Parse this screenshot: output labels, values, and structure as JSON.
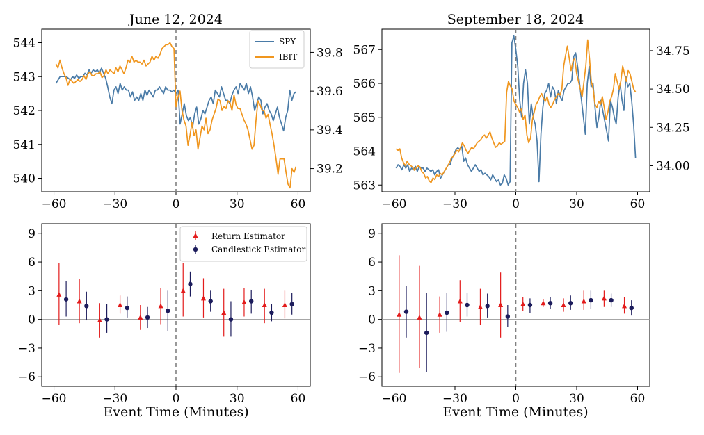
{
  "figure": {
    "titles": [
      "June 12, 2024",
      "September 18, 2024"
    ],
    "xlabel": "Event Time (Minutes)"
  },
  "colors": {
    "spy": "#4a7ba7",
    "ibit": "#f0961e",
    "return_estimator": "#e31b1b",
    "candlestick_estimator": "#1c1c5c",
    "event_line": "#808080",
    "zero_line": "#9a9a9a"
  },
  "chart_data": [
    {
      "type": "line",
      "title": "June 12, 2024",
      "x_ticks": [
        -60,
        -30,
        0,
        30,
        60
      ],
      "xlim": [
        -66,
        66
      ],
      "ylim_left": [
        539.6,
        544.4
      ],
      "yticks_left": [
        540,
        541,
        542,
        543,
        544
      ],
      "ylim_right": [
        39.08,
        39.92
      ],
      "yticks_right": [
        "39.2",
        "39.4",
        "39.6",
        "39.8"
      ],
      "event_line_x": 0,
      "legend": [
        "SPY",
        "IBIT"
      ],
      "legend_position": "top-right",
      "series": [
        {
          "name": "SPY",
          "axis": "left",
          "x_start": -59,
          "values": [
            542.8,
            542.9,
            543.0,
            543.0,
            543.0,
            543.0,
            542.95,
            542.9,
            543.0,
            542.95,
            543.05,
            542.95,
            543.0,
            543.0,
            543.1,
            543.05,
            543.2,
            543.1,
            543.2,
            543.15,
            543.2,
            543.1,
            543.25,
            543.1,
            542.95,
            542.7,
            542.4,
            542.2,
            542.6,
            542.7,
            542.5,
            542.8,
            542.6,
            542.7,
            542.6,
            542.6,
            542.4,
            542.55,
            542.3,
            542.4,
            542.3,
            542.5,
            542.3,
            542.6,
            542.45,
            542.6,
            542.5,
            542.4,
            542.6,
            542.6,
            542.7,
            542.6,
            542.5,
            542.7,
            542.6,
            542.6,
            542.55,
            542.6,
            542.5,
            542.6,
            541.6,
            541.9,
            542.2,
            541.85,
            541.7,
            541.8,
            541.5,
            541.9,
            542.1,
            541.6,
            541.75,
            542.0,
            541.9,
            542.1,
            542.3,
            542.4,
            542.2,
            542.6,
            542.5,
            542.4,
            542.7,
            542.5,
            542.3,
            542.3,
            542.2,
            542.45,
            542.6,
            542.7,
            542.5,
            542.8,
            542.7,
            542.6,
            542.8,
            542.5,
            542.7,
            542.4,
            542.0,
            542.2,
            542.4,
            542.3,
            541.9,
            542.1,
            542.2,
            542.0,
            541.9,
            541.7,
            541.9,
            542.1,
            541.8,
            541.6,
            541.4,
            541.8,
            542.0,
            542.6,
            542.3,
            542.5,
            542.55
          ]
        },
        {
          "name": "IBIT",
          "axis": "right",
          "x_start": -59,
          "values": [
            39.74,
            39.72,
            39.76,
            39.72,
            39.69,
            39.67,
            39.63,
            39.66,
            39.65,
            39.64,
            39.65,
            39.66,
            39.65,
            39.66,
            39.68,
            39.66,
            39.69,
            39.7,
            39.68,
            39.68,
            39.69,
            39.69,
            39.7,
            39.67,
            39.68,
            39.71,
            39.69,
            39.71,
            39.7,
            39.69,
            39.72,
            39.7,
            39.73,
            39.71,
            39.69,
            39.72,
            39.76,
            39.75,
            39.78,
            39.75,
            39.76,
            39.75,
            39.75,
            39.74,
            39.76,
            39.73,
            39.74,
            39.75,
            39.78,
            39.76,
            39.78,
            39.77,
            39.79,
            39.82,
            39.83,
            39.84,
            39.84,
            39.85,
            39.83,
            39.82,
            39.52,
            39.57,
            39.6,
            39.5,
            39.45,
            39.42,
            39.32,
            39.37,
            39.44,
            39.37,
            39.4,
            39.3,
            39.36,
            39.42,
            39.4,
            39.46,
            39.38,
            39.4,
            39.45,
            39.48,
            39.51,
            39.56,
            39.55,
            39.5,
            39.52,
            39.51,
            39.55,
            39.54,
            39.5,
            39.58,
            39.53,
            39.51,
            39.51,
            39.48,
            39.45,
            39.43,
            39.4,
            39.35,
            39.3,
            39.32,
            39.45,
            39.55,
            39.53,
            39.5,
            39.5,
            39.46,
            39.48,
            39.43,
            39.38,
            39.32,
            39.25,
            39.17,
            39.25,
            39.25,
            39.25,
            39.18,
            39.12,
            39.1,
            39.2,
            39.18,
            39.21
          ]
        }
      ]
    },
    {
      "type": "line",
      "title": "September 18, 2024",
      "x_ticks": [
        -60,
        -30,
        0,
        30,
        60
      ],
      "xlim": [
        -66,
        66
      ],
      "ylim_left": [
        562.8,
        567.6
      ],
      "yticks_left": [
        563,
        564,
        565,
        566,
        567
      ],
      "ylim_right": [
        33.83,
        34.89
      ],
      "yticks_right": [
        "34.00",
        "34.25",
        "34.50",
        "34.75"
      ],
      "event_line_x": 0,
      "series": [
        {
          "name": "SPY",
          "axis": "left",
          "x_start": -59,
          "values": [
            563.5,
            563.6,
            563.55,
            563.45,
            563.6,
            563.5,
            563.6,
            563.4,
            563.5,
            563.45,
            563.55,
            563.4,
            563.55,
            563.5,
            563.5,
            563.4,
            563.5,
            563.45,
            563.4,
            563.45,
            563.3,
            563.4,
            563.45,
            563.2,
            563.3,
            563.4,
            563.5,
            563.6,
            563.6,
            563.8,
            563.9,
            564.05,
            564.1,
            564.05,
            564.15,
            563.7,
            563.8,
            563.6,
            563.5,
            563.4,
            563.5,
            563.6,
            563.5,
            563.4,
            563.45,
            563.3,
            563.35,
            563.3,
            563.25,
            563.15,
            563.3,
            563.2,
            563.1,
            563.15,
            563.0,
            563.05,
            563.3,
            563.2,
            563.0,
            563.1,
            567.2,
            567.4,
            567.0,
            566.5,
            565.5,
            565.0,
            566.0,
            566.4,
            566.0,
            564.8,
            565.4,
            565.0,
            564.8,
            564.3,
            563.1,
            564.5,
            565.3,
            565.7,
            565.8,
            566.0,
            565.6,
            565.9,
            565.8,
            565.4,
            565.8,
            565.6,
            565.5,
            565.8,
            565.9,
            566.0,
            566.0,
            566.1,
            566.8,
            566.9,
            566.5,
            566.0,
            565.5,
            565.0,
            564.5,
            566.0,
            566.5,
            565.9,
            566.0,
            565.3,
            564.7,
            565.0,
            565.5,
            565.2,
            564.9,
            564.6,
            564.3,
            565.5,
            565.3,
            565.0,
            564.8,
            565.6,
            566.0,
            565.5,
            565.2,
            566.2,
            565.9,
            566.0,
            565.5,
            564.8,
            563.8
          ]
        },
        {
          "name": "IBIT",
          "axis": "right",
          "x_start": -59,
          "values": [
            34.11,
            34.1,
            34.11,
            34.05,
            34.02,
            34.0,
            34.03,
            34.01,
            34.0,
            33.99,
            33.97,
            33.99,
            34.0,
            33.99,
            33.96,
            33.95,
            33.92,
            33.93,
            33.9,
            33.89,
            33.92,
            33.91,
            33.94,
            33.93,
            33.95,
            33.94,
            33.96,
            33.98,
            34.0,
            34.02,
            34.05,
            34.06,
            34.08,
            34.1,
            34.09,
            34.12,
            34.15,
            34.13,
            34.1,
            34.08,
            34.1,
            34.12,
            34.11,
            34.13,
            34.15,
            34.16,
            34.17,
            34.19,
            34.2,
            34.18,
            34.2,
            34.22,
            34.18,
            34.15,
            34.12,
            34.13,
            34.15,
            34.14,
            34.15,
            34.16,
            34.48,
            34.55,
            34.52,
            34.5,
            34.42,
            34.4,
            34.38,
            34.35,
            34.37,
            34.3,
            34.33,
            34.2,
            34.15,
            34.18,
            34.3,
            34.35,
            34.4,
            34.42,
            34.45,
            34.47,
            34.44,
            34.42,
            34.45,
            34.4,
            34.38,
            34.4,
            34.43,
            34.45,
            34.47,
            34.46,
            34.5,
            34.65,
            34.72,
            34.78,
            34.7,
            34.62,
            34.68,
            34.7,
            34.6,
            34.55,
            34.5,
            34.45,
            34.55,
            34.65,
            34.82,
            34.7,
            34.55,
            34.5,
            34.4,
            34.38,
            34.42,
            34.4,
            34.45,
            34.38,
            34.3,
            34.35,
            34.42,
            34.45,
            34.5,
            34.6,
            34.55,
            34.5,
            34.55,
            34.65,
            34.6,
            34.55,
            34.62,
            34.6,
            34.55,
            34.5,
            34.48
          ]
        }
      ]
    },
    {
      "type": "scatter",
      "subtype": "errorbar",
      "xlim": [
        -66,
        66
      ],
      "ylim": [
        -7,
        10
      ],
      "x_ticks": [
        -60,
        -30,
        0,
        30,
        60
      ],
      "y_ticks": [
        -6,
        -3,
        0,
        3,
        6,
        9
      ],
      "event_line_x": 0,
      "zero_line_y": 0,
      "legend": [
        "Return Estimator",
        "Candlestick Estimator"
      ],
      "legend_position": "top-right",
      "series": [
        {
          "name": "Return Estimator",
          "marker": "triangle",
          "points": [
            {
              "x": -57.5,
              "y": 2.6,
              "lo": -0.6,
              "hi": 5.9
            },
            {
              "x": -47.5,
              "y": 1.9,
              "lo": -0.4,
              "hi": 4.2
            },
            {
              "x": -37.5,
              "y": -0.1,
              "lo": -1.9,
              "hi": 1.7
            },
            {
              "x": -27.5,
              "y": 1.5,
              "lo": 0.6,
              "hi": 2.5
            },
            {
              "x": -17.5,
              "y": 0.2,
              "lo": -1.1,
              "hi": 1.5
            },
            {
              "x": -7.5,
              "y": 1.4,
              "lo": -0.5,
              "hi": 3.3
            },
            {
              "x": 3.5,
              "y": 3.0,
              "lo": 0.3,
              "hi": 5.9
            },
            {
              "x": 13.5,
              "y": 2.2,
              "lo": 0.2,
              "hi": 4.3
            },
            {
              "x": 23.5,
              "y": 0.7,
              "lo": -1.8,
              "hi": 3.2
            },
            {
              "x": 33.5,
              "y": 1.8,
              "lo": 0.3,
              "hi": 3.3
            },
            {
              "x": 43.5,
              "y": 1.5,
              "lo": -0.4,
              "hi": 3.2
            },
            {
              "x": 53.5,
              "y": 1.5,
              "lo": 0.1,
              "hi": 3.0
            }
          ]
        },
        {
          "name": "Candlestick Estimator",
          "marker": "circle",
          "points": [
            {
              "x": -54,
              "y": 2.1,
              "lo": 0.3,
              "hi": 4.0
            },
            {
              "x": -44,
              "y": 1.4,
              "lo": -0.1,
              "hi": 2.9
            },
            {
              "x": -34,
              "y": 0.0,
              "lo": -1.4,
              "hi": 1.6
            },
            {
              "x": -24,
              "y": 1.2,
              "lo": 0.2,
              "hi": 2.4
            },
            {
              "x": -14,
              "y": 0.2,
              "lo": -0.9,
              "hi": 1.3
            },
            {
              "x": -4,
              "y": 0.9,
              "lo": -1.2,
              "hi": 3.0
            },
            {
              "x": 7,
              "y": 3.7,
              "lo": 2.4,
              "hi": 5.0
            },
            {
              "x": 17,
              "y": 1.9,
              "lo": 0.8,
              "hi": 3.0
            },
            {
              "x": 27,
              "y": 0.0,
              "lo": -1.8,
              "hi": 1.9
            },
            {
              "x": 37,
              "y": 1.9,
              "lo": 0.6,
              "hi": 3.1
            },
            {
              "x": 47,
              "y": 0.7,
              "lo": -0.2,
              "hi": 1.6
            },
            {
              "x": 57,
              "y": 1.6,
              "lo": 0.5,
              "hi": 2.8
            }
          ]
        }
      ]
    },
    {
      "type": "scatter",
      "subtype": "errorbar",
      "xlim": [
        -66,
        66
      ],
      "ylim": [
        -7,
        10
      ],
      "x_ticks": [
        -60,
        -30,
        0,
        30,
        60
      ],
      "y_ticks": [
        -6,
        -3,
        0,
        3,
        6,
        9
      ],
      "event_line_x": 0,
      "zero_line_y": 0,
      "series": [
        {
          "name": "Return Estimator",
          "marker": "triangle",
          "points": [
            {
              "x": -57.5,
              "y": 0.5,
              "lo": -5.6,
              "hi": 6.7
            },
            {
              "x": -47.5,
              "y": 0.2,
              "lo": -5.1,
              "hi": 5.6
            },
            {
              "x": -37.5,
              "y": 0.5,
              "lo": -1.4,
              "hi": 2.4
            },
            {
              "x": -27.5,
              "y": 1.9,
              "lo": -0.3,
              "hi": 4.1
            },
            {
              "x": -17.5,
              "y": 1.3,
              "lo": -0.6,
              "hi": 3.2
            },
            {
              "x": -7.5,
              "y": 1.5,
              "lo": -1.9,
              "hi": 4.9
            },
            {
              "x": 3.5,
              "y": 1.6,
              "lo": 0.9,
              "hi": 2.3
            },
            {
              "x": 13.5,
              "y": 1.7,
              "lo": 1.3,
              "hi": 2.1
            },
            {
              "x": 23.5,
              "y": 1.5,
              "lo": 0.8,
              "hi": 2.2
            },
            {
              "x": 33.5,
              "y": 1.9,
              "lo": 1.0,
              "hi": 3.0
            },
            {
              "x": 43.5,
              "y": 2.2,
              "lo": 1.3,
              "hi": 3.0
            },
            {
              "x": 53.5,
              "y": 1.4,
              "lo": 0.6,
              "hi": 2.3
            }
          ]
        },
        {
          "name": "Candlestick Estimator",
          "marker": "circle",
          "points": [
            {
              "x": -54,
              "y": 0.8,
              "lo": -1.9,
              "hi": 3.5
            },
            {
              "x": -44,
              "y": -1.4,
              "lo": -5.5,
              "hi": 2.8
            },
            {
              "x": -34,
              "y": 0.7,
              "lo": -1.3,
              "hi": 2.8
            },
            {
              "x": -24,
              "y": 1.5,
              "lo": 0.3,
              "hi": 2.8
            },
            {
              "x": -14,
              "y": 1.4,
              "lo": 0.2,
              "hi": 2.7
            },
            {
              "x": -4,
              "y": 0.3,
              "lo": -0.8,
              "hi": 1.5
            },
            {
              "x": 7,
              "y": 1.5,
              "lo": 0.7,
              "hi": 2.2
            },
            {
              "x": 17,
              "y": 1.7,
              "lo": 1.1,
              "hi": 2.3
            },
            {
              "x": 27,
              "y": 1.7,
              "lo": 1.0,
              "hi": 2.5
            },
            {
              "x": 37,
              "y": 2.0,
              "lo": 1.1,
              "hi": 3.0
            },
            {
              "x": 47,
              "y": 2.0,
              "lo": 1.3,
              "hi": 2.7
            },
            {
              "x": 57,
              "y": 1.2,
              "lo": 0.4,
              "hi": 2.0
            }
          ]
        }
      ]
    }
  ]
}
